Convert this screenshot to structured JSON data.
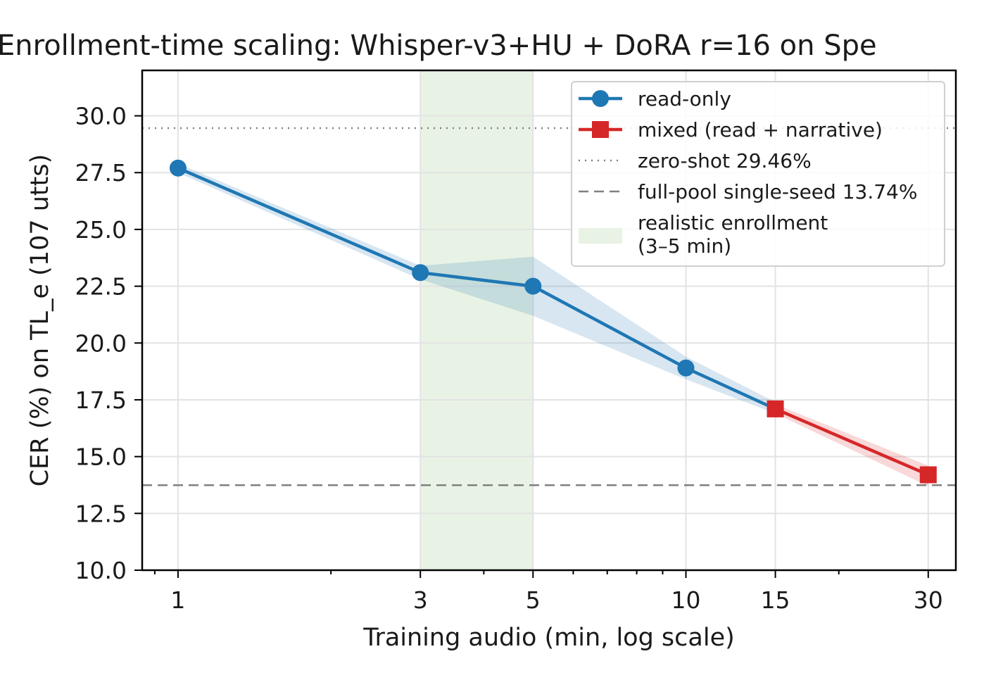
{
  "chart_data": {
    "type": "line",
    "title": "Enrollment-time scaling: Whisper-v3+HU + DoRA r=16 on Spe",
    "xlabel": "Training audio (min, log scale)",
    "ylabel": "CER (%) on TL_e (107 utts)",
    "x_scale": "log",
    "xlim": [
      0.85,
      34
    ],
    "ylim": [
      10.0,
      32.0
    ],
    "x_ticks": [
      {
        "value": 1,
        "label": "1"
      },
      {
        "value": 3,
        "label": "3"
      },
      {
        "value": 5,
        "label": "5"
      },
      {
        "value": 10,
        "label": "10"
      },
      {
        "value": 15,
        "label": "15"
      },
      {
        "value": 30,
        "label": "30"
      }
    ],
    "y_ticks": [
      {
        "value": 10.0,
        "label": "10.0"
      },
      {
        "value": 12.5,
        "label": "12.5"
      },
      {
        "value": 15.0,
        "label": "15.0"
      },
      {
        "value": 17.5,
        "label": "17.5"
      },
      {
        "value": 20.0,
        "label": "20.0"
      },
      {
        "value": 22.5,
        "label": "22.5"
      },
      {
        "value": 25.0,
        "label": "25.0"
      },
      {
        "value": 27.5,
        "label": "27.5"
      },
      {
        "value": 30.0,
        "label": "30.0"
      }
    ],
    "grid": true,
    "legend_position": "top-right",
    "series": [
      {
        "name": "read-only",
        "color": "#1f77b4",
        "marker": "circle",
        "x": [
          1,
          3,
          5,
          10,
          15
        ],
        "y": [
          27.7,
          23.1,
          22.5,
          18.9,
          17.1
        ],
        "y_low": [
          27.5,
          22.8,
          21.2,
          18.4,
          16.9
        ],
        "y_high": [
          27.9,
          23.4,
          23.8,
          19.4,
          17.4
        ]
      },
      {
        "name": "mixed (read + narrative)",
        "color": "#d62728",
        "marker": "square",
        "x": [
          15,
          30
        ],
        "y": [
          17.1,
          14.2
        ],
        "y_low": [
          16.9,
          13.7
        ],
        "y_high": [
          17.3,
          14.6
        ]
      }
    ],
    "reference_lines": [
      {
        "name": "zero-shot 29.46%",
        "value": 29.46,
        "style": "dotted",
        "color": "#808080"
      },
      {
        "name": "full-pool single-seed 13.74%",
        "value": 13.74,
        "style": "dashed",
        "color": "#808080"
      }
    ],
    "shaded_region": {
      "name": "realistic enrollment (3–5 min)",
      "label_lines": [
        "realistic enrollment",
        "(3–5 min)"
      ],
      "x_start": 3,
      "x_end": 5,
      "color": "#e8f3e5"
    }
  }
}
